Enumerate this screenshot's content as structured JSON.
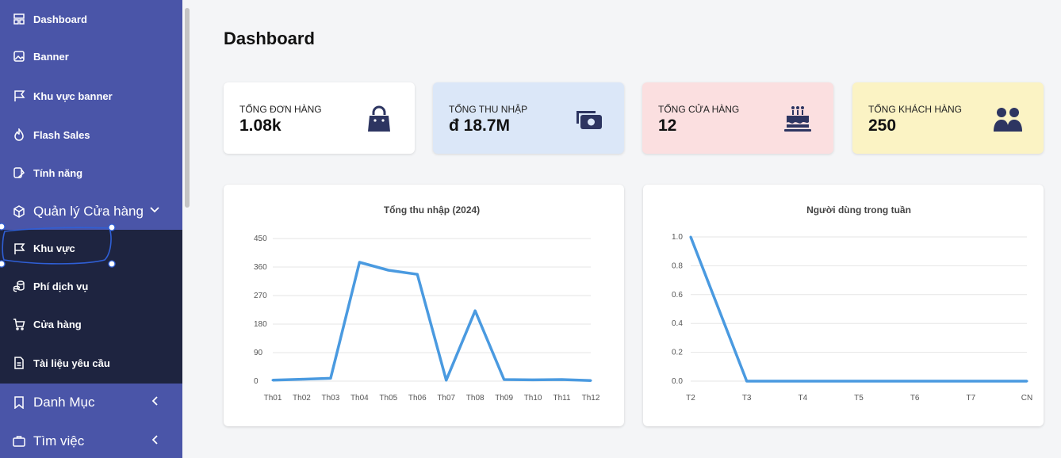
{
  "sidebar": {
    "items": [
      {
        "label": "Dashboard",
        "icon": "layout-icon"
      },
      {
        "label": "Banner",
        "icon": "image-icon"
      },
      {
        "label": "Khu vực banner",
        "icon": "flag-icon"
      },
      {
        "label": "Flash Sales",
        "icon": "fire-icon"
      },
      {
        "label": "Tính năng",
        "icon": "feature-icon"
      },
      {
        "label": "Quản lý Cửa hàng",
        "icon": "box-icon"
      },
      {
        "label": "Khu vực",
        "icon": "flag-icon"
      },
      {
        "label": "Phí dịch vụ",
        "icon": "coins-icon"
      },
      {
        "label": "Cửa hàng",
        "icon": "cart-icon"
      },
      {
        "label": "Tài liệu yêu cầu",
        "icon": "document-icon"
      },
      {
        "label": "Danh Mục",
        "icon": "bookmark-icon"
      },
      {
        "label": "Tìm việc",
        "icon": "briefcase-icon"
      }
    ]
  },
  "main": {
    "title": "Dashboard",
    "stats": [
      {
        "label": "TỔNG ĐƠN HÀNG",
        "value": "1.08k",
        "icon": "shopping-bag-icon",
        "bg": "#ffffff"
      },
      {
        "label": "TỔNG THU NHẬP",
        "value": "đ 18.7M",
        "icon": "money-icon",
        "bg": "#dbe7f8"
      },
      {
        "label": "TỔNG CỬA HÀNG",
        "value": "12",
        "icon": "cake-icon",
        "bg": "#fbdfe0"
      },
      {
        "label": "TỔNG KHÁCH HÀNG",
        "value": "250",
        "icon": "users-icon",
        "bg": "#fbf3c4"
      }
    ]
  },
  "colors": {
    "sidebar": "#4a55a8",
    "submenu": "#1e2440",
    "line": "#4a9ae0",
    "icon": "#2d3561",
    "annotation": "#2f5fd6"
  },
  "chart_data": [
    {
      "type": "line",
      "title": "Tổng thu nhập (2024)",
      "categories": [
        "Th01",
        "Th02",
        "Th03",
        "Th04",
        "Th05",
        "Th06",
        "Th07",
        "Th08",
        "Th09",
        "Th10",
        "Th11",
        "Th12"
      ],
      "values": [
        3,
        6,
        9,
        375,
        350,
        337,
        3,
        222,
        5,
        4,
        5,
        2
      ],
      "yticks": [
        "0",
        "90",
        "180",
        "270",
        "360",
        "450"
      ],
      "ylim": [
        0,
        450
      ]
    },
    {
      "type": "line",
      "title": "Người dùng trong tuần",
      "categories": [
        "T2",
        "T3",
        "T4",
        "T5",
        "T6",
        "T7",
        "CN"
      ],
      "values": [
        1.0,
        0,
        0,
        0,
        0,
        0,
        0
      ],
      "yticks": [
        "0.0",
        "0.2",
        "0.4",
        "0.6",
        "0.8",
        "1.0"
      ],
      "ylim": [
        0,
        1
      ]
    }
  ]
}
